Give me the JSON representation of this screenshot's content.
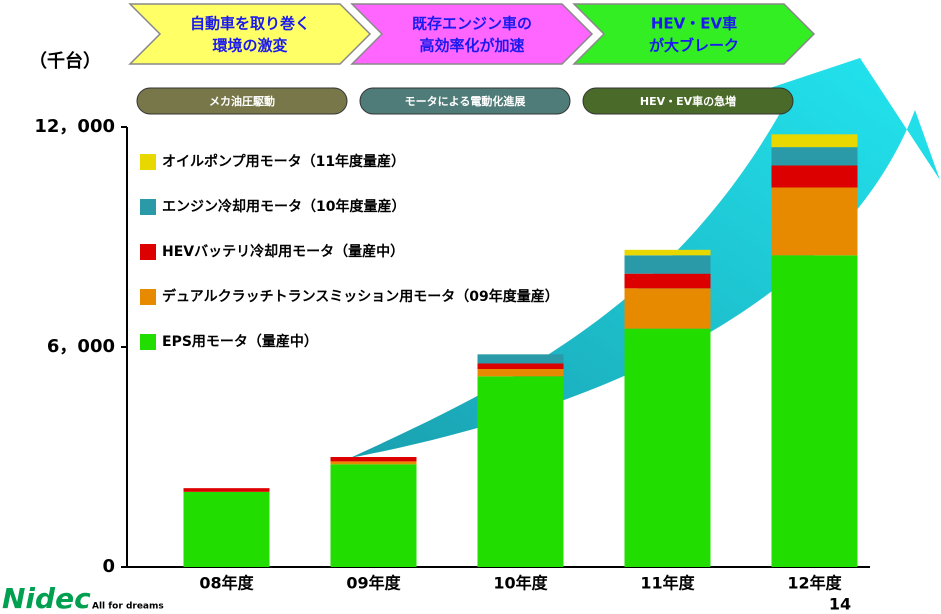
{
  "chart_data": {
    "type": "stacked_bar",
    "unit_label": "（千台）",
    "banners": [
      {
        "lines": [
          "自動車を取り巻く",
          "環境の激変"
        ],
        "color": "#ffff66"
      },
      {
        "lines": [
          "既存エンジン車の",
          "高効率化が加速"
        ],
        "color": "#ff66ff"
      },
      {
        "lines": [
          "HEV・EV車",
          "が大ブレーク"
        ],
        "color": "#33ee22"
      }
    ],
    "phases": [
      {
        "label": "メカ油圧駆動",
        "color": "#77774a"
      },
      {
        "label": "モータによる電動化進展",
        "color": "#4f7b78"
      },
      {
        "label": "HEV・EV車の急増",
        "color": "#4a6a2a"
      }
    ],
    "categories": [
      "08年度",
      "09年度",
      "10年度",
      "11年度",
      "12年度"
    ],
    "series": [
      {
        "name": "EPS用モータ（量産中）",
        "color": "#22dd00",
        "values": [
          2050,
          2800,
          5200,
          6500,
          8500
        ]
      },
      {
        "name": "デュアルクラッチトランスミッション用モータ（09年度量産）",
        "color": "#e88a00",
        "values": [
          0,
          80,
          200,
          1100,
          1850
        ]
      },
      {
        "name": "HEVバッテリ冷却用モータ（量産中）",
        "color": "#dd0000",
        "values": [
          100,
          120,
          150,
          400,
          600
        ]
      },
      {
        "name": "エンジン冷却用モータ（10年度量産）",
        "color": "#2a9aa8",
        "values": [
          0,
          0,
          250,
          500,
          500
        ]
      },
      {
        "name": "オイルポンプ用モータ（11年度量産）",
        "color": "#e8d800",
        "values": [
          0,
          0,
          0,
          150,
          350
        ]
      }
    ],
    "ylim": [
      0,
      12000
    ],
    "yticks": [
      0,
      {
        "value": 6000,
        "label": "6，000"
      },
      {
        "value": 12000,
        "label": "12，000"
      }
    ],
    "logo": "Nidec",
    "tagline": "All for dreams",
    "page_number": "14"
  }
}
